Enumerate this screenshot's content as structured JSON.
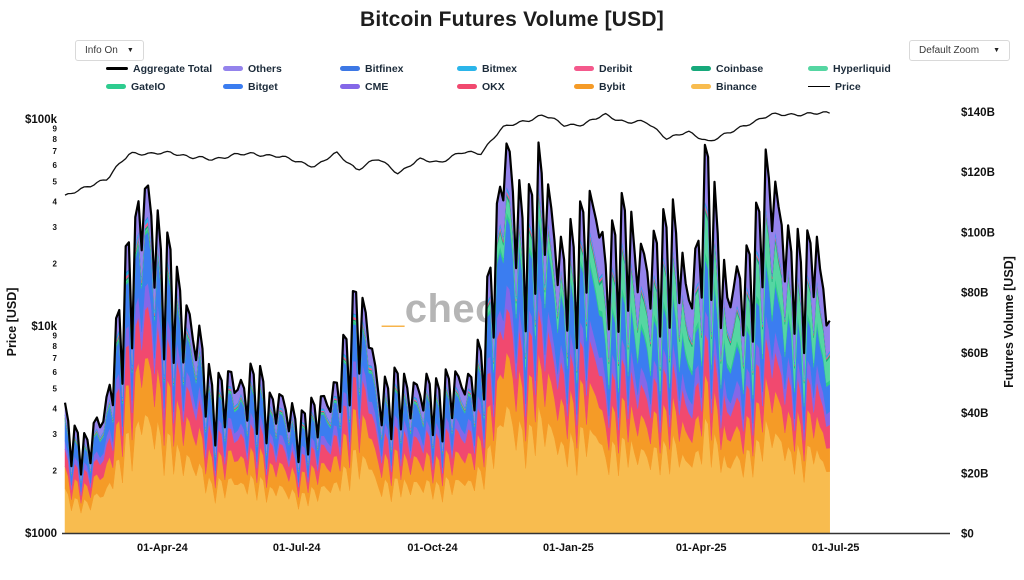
{
  "header": {
    "title": "Bitcoin Futures Volume [USD]"
  },
  "controls": {
    "info_dropdown": {
      "label": "Info On",
      "caret": "▼"
    },
    "zoom_dropdown": {
      "label": "Default Zoom",
      "caret": "▼"
    }
  },
  "watermark": {
    "underscore": "_",
    "text": "checkonchain"
  },
  "legend": {
    "rows": [
      [
        {
          "label": "Aggregate Total",
          "style": "line",
          "color": "#000000"
        },
        {
          "label": "Others",
          "style": "area",
          "color": "#9483ec"
        },
        {
          "label": "Bitfinex",
          "style": "area",
          "color": "#3d78e5"
        },
        {
          "label": "Bitmex",
          "style": "area",
          "color": "#2bb5ea"
        },
        {
          "label": "Deribit",
          "style": "area",
          "color": "#f4598c"
        },
        {
          "label": "Coinbase",
          "style": "area",
          "color": "#17a97b"
        },
        {
          "label": "Hyperliquid",
          "style": "area",
          "color": "#55d6a2"
        }
      ],
      [
        {
          "label": "GateIO",
          "style": "area",
          "color": "#2ecc8f"
        },
        {
          "label": "Bitget",
          "style": "area",
          "color": "#3b7df0"
        },
        {
          "label": "CME",
          "style": "area",
          "color": "#8467e8"
        },
        {
          "label": "OKX",
          "style": "area",
          "color": "#f1496f"
        },
        {
          "label": "Bybit",
          "style": "area",
          "color": "#f59b27"
        },
        {
          "label": "Binance",
          "style": "area",
          "color": "#f8bc4f"
        },
        {
          "label": "Price",
          "style": "thinline",
          "color": "#000000"
        }
      ]
    ]
  },
  "axes": {
    "left": {
      "title": "Price [USD]",
      "scale": "log",
      "major_ticks": [
        {
          "label": "$100k",
          "value": 100000
        },
        {
          "label": "$10k",
          "value": 10000
        },
        {
          "label": "$1000",
          "value": 1000
        }
      ],
      "minor_tick_values": [
        90000,
        80000,
        70000,
        60000,
        50000,
        40000,
        30000,
        20000,
        9000,
        8000,
        7000,
        6000,
        5000,
        4000,
        3000,
        2000
      ]
    },
    "right": {
      "title": "Futures Volume [USD]",
      "scale": "linear",
      "ticks": [
        {
          "label": "$0",
          "value": 0
        },
        {
          "label": "$20B",
          "value": 20
        },
        {
          "label": "$40B",
          "value": 40
        },
        {
          "label": "$60B",
          "value": 60
        },
        {
          "label": "$80B",
          "value": 80
        },
        {
          "label": "$100B",
          "value": 100
        },
        {
          "label": "$120B",
          "value": 120
        },
        {
          "label": "$140B",
          "value": 140
        }
      ]
    },
    "x": {
      "ticks": [
        {
          "label": "01-Apr-24",
          "date": "2024-04-01"
        },
        {
          "label": "01-Jul-24",
          "date": "2024-07-01"
        },
        {
          "label": "01-Oct-24",
          "date": "2024-10-01"
        },
        {
          "label": "01-Jan-25",
          "date": "2025-01-01"
        },
        {
          "label": "01-Apr-25",
          "date": "2025-04-01"
        },
        {
          "label": "01-Jul-25",
          "date": "2025-07-01"
        }
      ]
    }
  },
  "chart_data": {
    "type": "area",
    "stacked": true,
    "title": "Bitcoin Futures Volume [USD]",
    "units": "billion USD per day",
    "x_domain": [
      "2024-01-24",
      "2025-07-04"
    ],
    "right_axis_max": 140,
    "price_axis_range": [
      1000,
      140000
    ],
    "legend_position": "top",
    "grid": false,
    "x": [
      "2024-01-26",
      "2024-02-10",
      "2024-02-24",
      "2024-03-10",
      "2024-03-24",
      "2024-04-07",
      "2024-04-21",
      "2024-05-05",
      "2024-05-19",
      "2024-06-02",
      "2024-06-16",
      "2024-06-30",
      "2024-07-14",
      "2024-07-28",
      "2024-08-11",
      "2024-08-25",
      "2024-09-08",
      "2024-09-22",
      "2024-10-06",
      "2024-10-20",
      "2024-11-03",
      "2024-11-17",
      "2024-12-01",
      "2024-12-15",
      "2024-12-29",
      "2025-01-12",
      "2025-01-26",
      "2025-02-09",
      "2025-02-23",
      "2025-03-09",
      "2025-03-23",
      "2025-04-06",
      "2025-04-20",
      "2025-05-04",
      "2025-05-18",
      "2025-06-01",
      "2025-06-15",
      "2025-06-27"
    ],
    "series": [
      {
        "name": "Binance",
        "color": "#f8bc4f",
        "values": [
          13.6,
          10.2,
          15.3,
          34.7,
          38.1,
          30.6,
          23.8,
          17.7,
          17.0,
          18.4,
          15.3,
          13.6,
          14.3,
          17.0,
          28.9,
          17.0,
          17.7,
          16.3,
          17.7,
          17.0,
          21.1,
          40.0,
          35.8,
          38.4,
          29.4,
          35.8,
          28.4,
          31.3,
          25.5,
          32.5,
          23.2,
          37.1,
          22.0,
          29.0,
          35.4,
          27.6,
          29.0,
          20.9
        ]
      },
      {
        "name": "Bybit",
        "color": "#f59b27",
        "values": [
          6.8,
          5.1,
          7.7,
          17.3,
          19.0,
          15.3,
          11.9,
          8.8,
          8.5,
          9.2,
          7.7,
          6.8,
          7.1,
          8.5,
          14.5,
          8.5,
          8.8,
          8.2,
          8.8,
          8.5,
          10.5,
          17.5,
          15.7,
          16.8,
          12.9,
          15.7,
          11.3,
          12.4,
          10.1,
          12.9,
          9.2,
          14.7,
          8.7,
          11.5,
          14.0,
          10.9,
          11.5,
          8.3
        ]
      },
      {
        "name": "OKX",
        "color": "#f1496f",
        "values": [
          5.6,
          4.2,
          6.3,
          14.3,
          15.7,
          12.6,
          9.8,
          7.3,
          7.0,
          7.6,
          6.3,
          5.6,
          5.9,
          7.0,
          11.9,
          7.0,
          7.3,
          6.7,
          7.3,
          7.0,
          8.7,
          15.0,
          13.4,
          14.4,
          11.0,
          13.4,
          10.8,
          11.9,
          9.7,
          12.3,
          8.8,
          14.1,
          8.4,
          11.0,
          13.4,
          10.5,
          11.0,
          7.9
        ]
      },
      {
        "name": "CME",
        "color": "#8467e8",
        "values": [
          2.6,
          2.0,
          2.9,
          6.6,
          7.3,
          5.9,
          4.6,
          3.4,
          3.3,
          3.5,
          2.9,
          2.6,
          2.7,
          3.3,
          5.5,
          3.3,
          3.4,
          3.1,
          3.4,
          3.3,
          4.0,
          7.5,
          6.7,
          7.2,
          5.5,
          6.7,
          5.9,
          6.5,
          5.3,
          6.7,
          4.8,
          7.7,
          4.6,
          6.0,
          7.3,
          5.7,
          6.0,
          4.3
        ]
      },
      {
        "name": "Bitget",
        "color": "#3b7df0",
        "values": [
          6.0,
          4.5,
          6.8,
          15.3,
          16.8,
          13.5,
          10.5,
          7.8,
          7.5,
          8.1,
          6.8,
          6.0,
          6.3,
          7.5,
          12.8,
          7.5,
          7.8,
          7.2,
          7.8,
          7.5,
          9.3,
          21.3,
          19.0,
          20.4,
          15.6,
          19.0,
          12.7,
          14.0,
          11.4,
          14.6,
          10.4,
          16.6,
          9.9,
          13.0,
          15.9,
          12.4,
          13.0,
          9.4
        ]
      },
      {
        "name": "GateIO",
        "color": "#2ecc8f",
        "values": [
          0.4,
          0.3,
          0.5,
          1.0,
          1.1,
          0.9,
          0.7,
          0.5,
          0.5,
          0.5,
          0.5,
          0.4,
          0.4,
          0.5,
          0.9,
          0.5,
          0.5,
          0.5,
          0.5,
          0.5,
          0.6,
          1.9,
          1.7,
          1.8,
          1.4,
          1.7,
          2.0,
          2.2,
          1.8,
          2.2,
          1.6,
          2.6,
          1.5,
          2.0,
          2.4,
          1.9,
          2.0,
          1.4
        ]
      },
      {
        "name": "Hyperliquid",
        "color": "#55d6a2",
        "values": [
          0.2,
          0.1,
          0.2,
          0.4,
          0.4,
          0.4,
          0.3,
          0.2,
          0.2,
          0.2,
          0.2,
          0.2,
          0.2,
          0.2,
          0.3,
          0.2,
          0.2,
          0.2,
          0.2,
          0.2,
          0.2,
          5.0,
          4.5,
          4.8,
          3.7,
          4.5,
          10.3,
          11.3,
          9.2,
          11.8,
          8.4,
          13.4,
          8.0,
          10.5,
          12.8,
          10.0,
          10.5,
          7.6
        ]
      },
      {
        "name": "Coinbase",
        "color": "#17a97b",
        "values": [
          0.2,
          0.2,
          0.3,
          0.6,
          0.7,
          0.5,
          0.4,
          0.3,
          0.3,
          0.3,
          0.3,
          0.2,
          0.3,
          0.3,
          0.5,
          0.3,
          0.3,
          0.3,
          0.3,
          0.3,
          0.4,
          1.0,
          0.9,
          1.0,
          0.7,
          0.9,
          1.0,
          1.1,
          0.9,
          1.1,
          0.8,
          1.3,
          0.8,
          1.0,
          1.2,
          1.0,
          1.0,
          0.7
        ]
      },
      {
        "name": "Deribit",
        "color": "#f4598c",
        "values": [
          0.4,
          0.3,
          0.5,
          1.0,
          1.1,
          0.9,
          0.7,
          0.5,
          0.5,
          0.5,
          0.5,
          0.4,
          0.4,
          0.5,
          0.9,
          0.5,
          0.5,
          0.5,
          0.5,
          0.5,
          0.6,
          1.0,
          0.9,
          1.0,
          0.7,
          0.9,
          0.8,
          0.9,
          0.7,
          0.9,
          0.6,
          1.0,
          0.6,
          0.8,
          1.0,
          0.8,
          0.8,
          0.6
        ]
      },
      {
        "name": "Bitmex",
        "color": "#2bb5ea",
        "values": [
          0.5,
          0.4,
          0.5,
          1.2,
          1.3,
          1.1,
          0.8,
          0.6,
          0.6,
          0.6,
          0.5,
          0.5,
          0.5,
          0.6,
          1.0,
          0.6,
          0.6,
          0.6,
          0.6,
          0.6,
          0.7,
          1.0,
          0.9,
          1.0,
          0.7,
          0.9,
          0.8,
          0.9,
          0.7,
          0.9,
          0.6,
          1.0,
          0.6,
          0.8,
          1.0,
          0.8,
          0.8,
          0.6
        ]
      },
      {
        "name": "Bitfinex",
        "color": "#3d78e5",
        "values": [
          0.2,
          0.1,
          0.2,
          0.4,
          0.4,
          0.4,
          0.3,
          0.2,
          0.2,
          0.2,
          0.2,
          0.2,
          0.2,
          0.2,
          0.3,
          0.2,
          0.2,
          0.2,
          0.2,
          0.2,
          0.2,
          0.4,
          0.3,
          0.4,
          0.3,
          0.3,
          0.3,
          0.3,
          0.3,
          0.3,
          0.2,
          0.4,
          0.2,
          0.3,
          0.4,
          0.3,
          0.3,
          0.2
        ]
      },
      {
        "name": "Others",
        "color": "#9483ec",
        "values": [
          3.6,
          2.7,
          4.0,
          9.1,
          10.0,
          8.0,
          6.2,
          4.6,
          4.5,
          4.8,
          4.0,
          3.6,
          3.7,
          4.5,
          7.6,
          4.5,
          4.6,
          4.3,
          4.6,
          4.5,
          5.5,
          13.5,
          12.1,
          13.0,
          9.9,
          12.1,
          13.8,
          15.2,
          12.4,
          15.8,
          11.3,
          18.0,
          10.7,
          14.1,
          17.2,
          13.4,
          14.1,
          10.2
        ]
      }
    ],
    "aggregate_total": {
      "name": "Aggregate Total",
      "color": "#000000",
      "values": [
        40,
        30,
        45,
        102,
        112,
        90,
        70,
        52,
        50,
        54,
        45,
        40,
        42,
        50,
        85,
        50,
        52,
        48,
        52,
        50,
        62,
        125,
        112,
        120,
        92,
        112,
        98,
        108,
        88,
        112,
        80,
        128,
        76,
        100,
        122,
        95,
        100,
        72
      ]
    },
    "price_line": {
      "name": "Price",
      "color": "#111111",
      "values_usd": [
        42000,
        47500,
        51000,
        69000,
        67200,
        69400,
        64900,
        64000,
        66900,
        67800,
        66600,
        62700,
        59200,
        68200,
        57000,
        64000,
        54900,
        63400,
        62100,
        68400,
        68700,
        89900,
        97300,
        104300,
        93700,
        94500,
        104800,
        96600,
        96300,
        80700,
        86000,
        78200,
        85200,
        95900,
        104200,
        105600,
        105500,
        107100
      ]
    }
  }
}
